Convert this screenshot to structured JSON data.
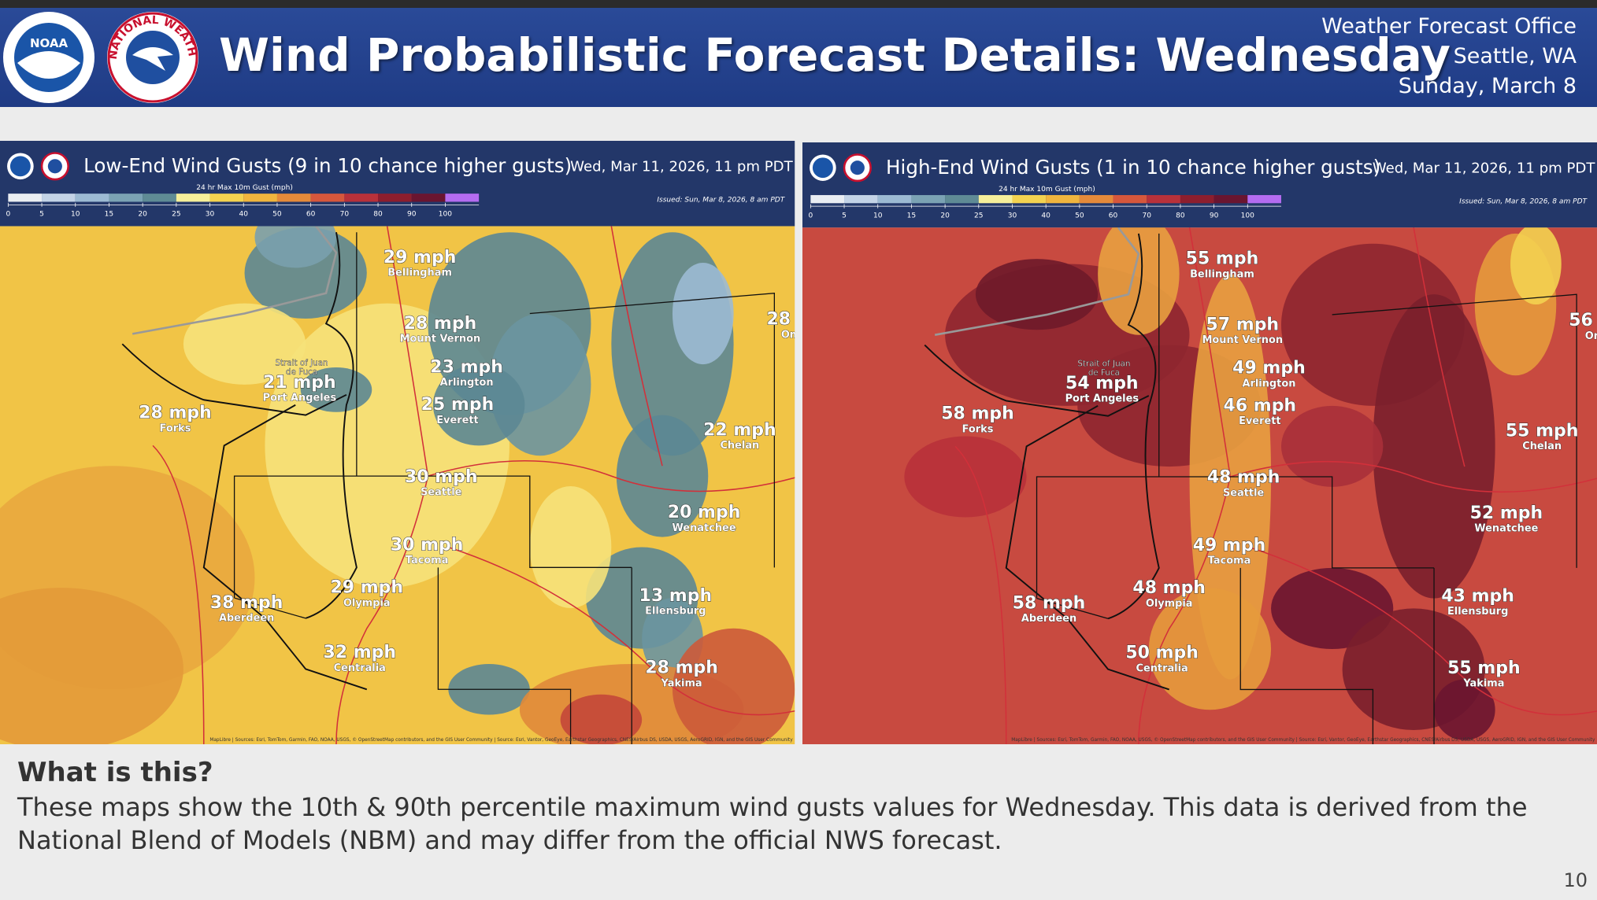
{
  "header": {
    "title": "Wind Probabilistic Forecast Details: Wednesday",
    "noaa": "NOAA",
    "nws": "NATIONAL WEATHER SERVICE",
    "office": [
      "Weather Forecast Office",
      "Seattle, WA",
      "Sunday, March 8"
    ]
  },
  "maps": [
    {
      "title": "Low-End Wind Gusts (9 in 10 chance higher gusts)",
      "valid": "Wed, Mar 11, 2026, 11 pm PDT",
      "legend_title": "24 hr Max 10m Gust (mph)",
      "legend_ticks": [
        0,
        5,
        10,
        15,
        20,
        25,
        30,
        40,
        50,
        60,
        70,
        80,
        90,
        100
      ],
      "issued": "Issued: Sun, Mar 8, 2026, 8 am PDT",
      "strait": [
        "Strait of Juan",
        "de Fuca"
      ],
      "cities": [
        {
          "value": "29 mph",
          "name": "Bellingham"
        },
        {
          "value": "28 mph",
          "name": "Mount Vernon"
        },
        {
          "value": "23 mph",
          "name": "Arlington"
        },
        {
          "value": "25 mph",
          "name": "Everett"
        },
        {
          "value": "30 mph",
          "name": "Seattle"
        },
        {
          "value": "30 mph",
          "name": "Tacoma"
        },
        {
          "value": "29 mph",
          "name": "Olympia"
        },
        {
          "value": "21 mph",
          "name": "Port Angeles"
        },
        {
          "value": "28 mph",
          "name": "Forks"
        },
        {
          "value": "38 mph",
          "name": "Aberdeen"
        },
        {
          "value": "32 mph",
          "name": "Centralia"
        },
        {
          "value": "22 mph",
          "name": "Chelan"
        },
        {
          "value": "20 mph",
          "name": "Wenatchee"
        },
        {
          "value": "13 mph",
          "name": "Ellensburg"
        },
        {
          "value": "28 mph",
          "name": "Yakima"
        },
        {
          "value": "28 m",
          "name": "Om"
        }
      ],
      "attribution": "MapLibre | Sources: Esri, TomTom, Garmin, FAO, NOAA, USGS, © OpenStreetMap contributors, and the GIS User Community | Source: Esri, Vantor, GeoEye, Earthstar Geographics, CNES/Airbus DS, USDA, USGS, AeroGRID, IGN, and the GIS User Community"
    },
    {
      "title": "High-End Wind Gusts (1 in 10 chance higher gusts)",
      "valid": "Wed, Mar 11, 2026, 11 pm PDT",
      "legend_title": "24 hr Max 10m Gust (mph)",
      "legend_ticks": [
        0,
        5,
        10,
        15,
        20,
        25,
        30,
        40,
        50,
        60,
        70,
        80,
        90,
        100
      ],
      "issued": "Issued: Sun, Mar 8, 2026, 8 am PDT",
      "strait": [
        "Strait of Juan",
        "de Fuca"
      ],
      "cities": [
        {
          "value": "55 mph",
          "name": "Bellingham"
        },
        {
          "value": "57 mph",
          "name": "Mount Vernon"
        },
        {
          "value": "49 mph",
          "name": "Arlington"
        },
        {
          "value": "46 mph",
          "name": "Everett"
        },
        {
          "value": "48 mph",
          "name": "Seattle"
        },
        {
          "value": "49 mph",
          "name": "Tacoma"
        },
        {
          "value": "48 mph",
          "name": "Olympia"
        },
        {
          "value": "54 mph",
          "name": "Port Angeles"
        },
        {
          "value": "58 mph",
          "name": "Forks"
        },
        {
          "value": "58 mph",
          "name": "Aberdeen"
        },
        {
          "value": "50 mph",
          "name": "Centralia"
        },
        {
          "value": "55 mph",
          "name": "Chelan"
        },
        {
          "value": "52 mph",
          "name": "Wenatchee"
        },
        {
          "value": "43 mph",
          "name": "Ellensburg"
        },
        {
          "value": "55 mph",
          "name": "Yakima"
        },
        {
          "value": "56 m",
          "name": "On"
        }
      ],
      "attribution": "MapLibre | Sources: Esri, TomTom, Garmin, FAO, NOAA, USGS, © OpenStreetMap contributors, and the GIS User Community | Source: Esri, Vantor, GeoEye, Earthstar Geographics, CNES/Airbus DS, USDA, USGS, AeroGRID, IGN, and the GIS User Community"
    }
  ],
  "footer": {
    "heading": "What is this?",
    "body": "These maps show the 10th & 90th percentile maximum wind gusts values for Wednesday. This data is derived from the National Blend of Models (NBM) and may differ from the official NWS forecast.",
    "page": "10"
  }
}
